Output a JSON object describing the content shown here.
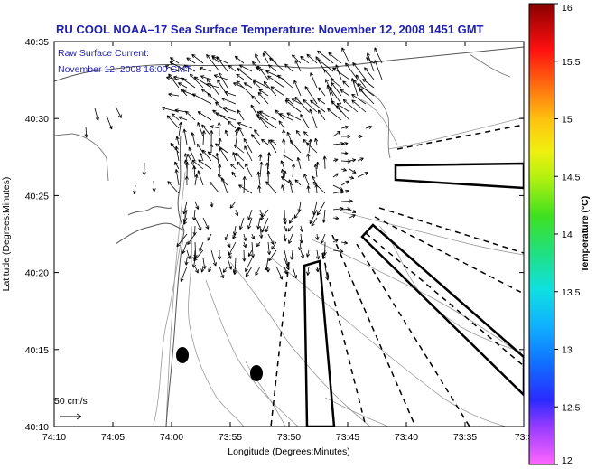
{
  "title": "RU COOL  NOAA–17  Sea Surface Temperature:  November 12, 2008 1451 GMT",
  "current_label_line1": "Raw Surface Current:",
  "current_label_line2": "November 12, 2008 16:00 GMT",
  "scale_label": "50 cm/s",
  "xlabel": "Longitude (Degrees:Minutes)",
  "ylabel": "Latitude (Degrees:Minutes)",
  "x_ticks": [
    "74:10",
    "74:05",
    "74:00",
    "73:55",
    "73:50",
    "73:45",
    "73:40",
    "73:35",
    "73:3"
  ],
  "y_ticks": [
    "40:35",
    "40:30",
    "40:25",
    "40:20",
    "40:15",
    "40:10"
  ],
  "colorbar": {
    "label": "Temperature (°C)",
    "ticks": [
      "16",
      "15.5",
      "15",
      "14.5",
      "14",
      "13.5",
      "13",
      "12.5",
      "12"
    ]
  },
  "colors": {
    "title_blue": "#1f1fb4",
    "land_line": "#888888",
    "coast": "#444444"
  }
}
